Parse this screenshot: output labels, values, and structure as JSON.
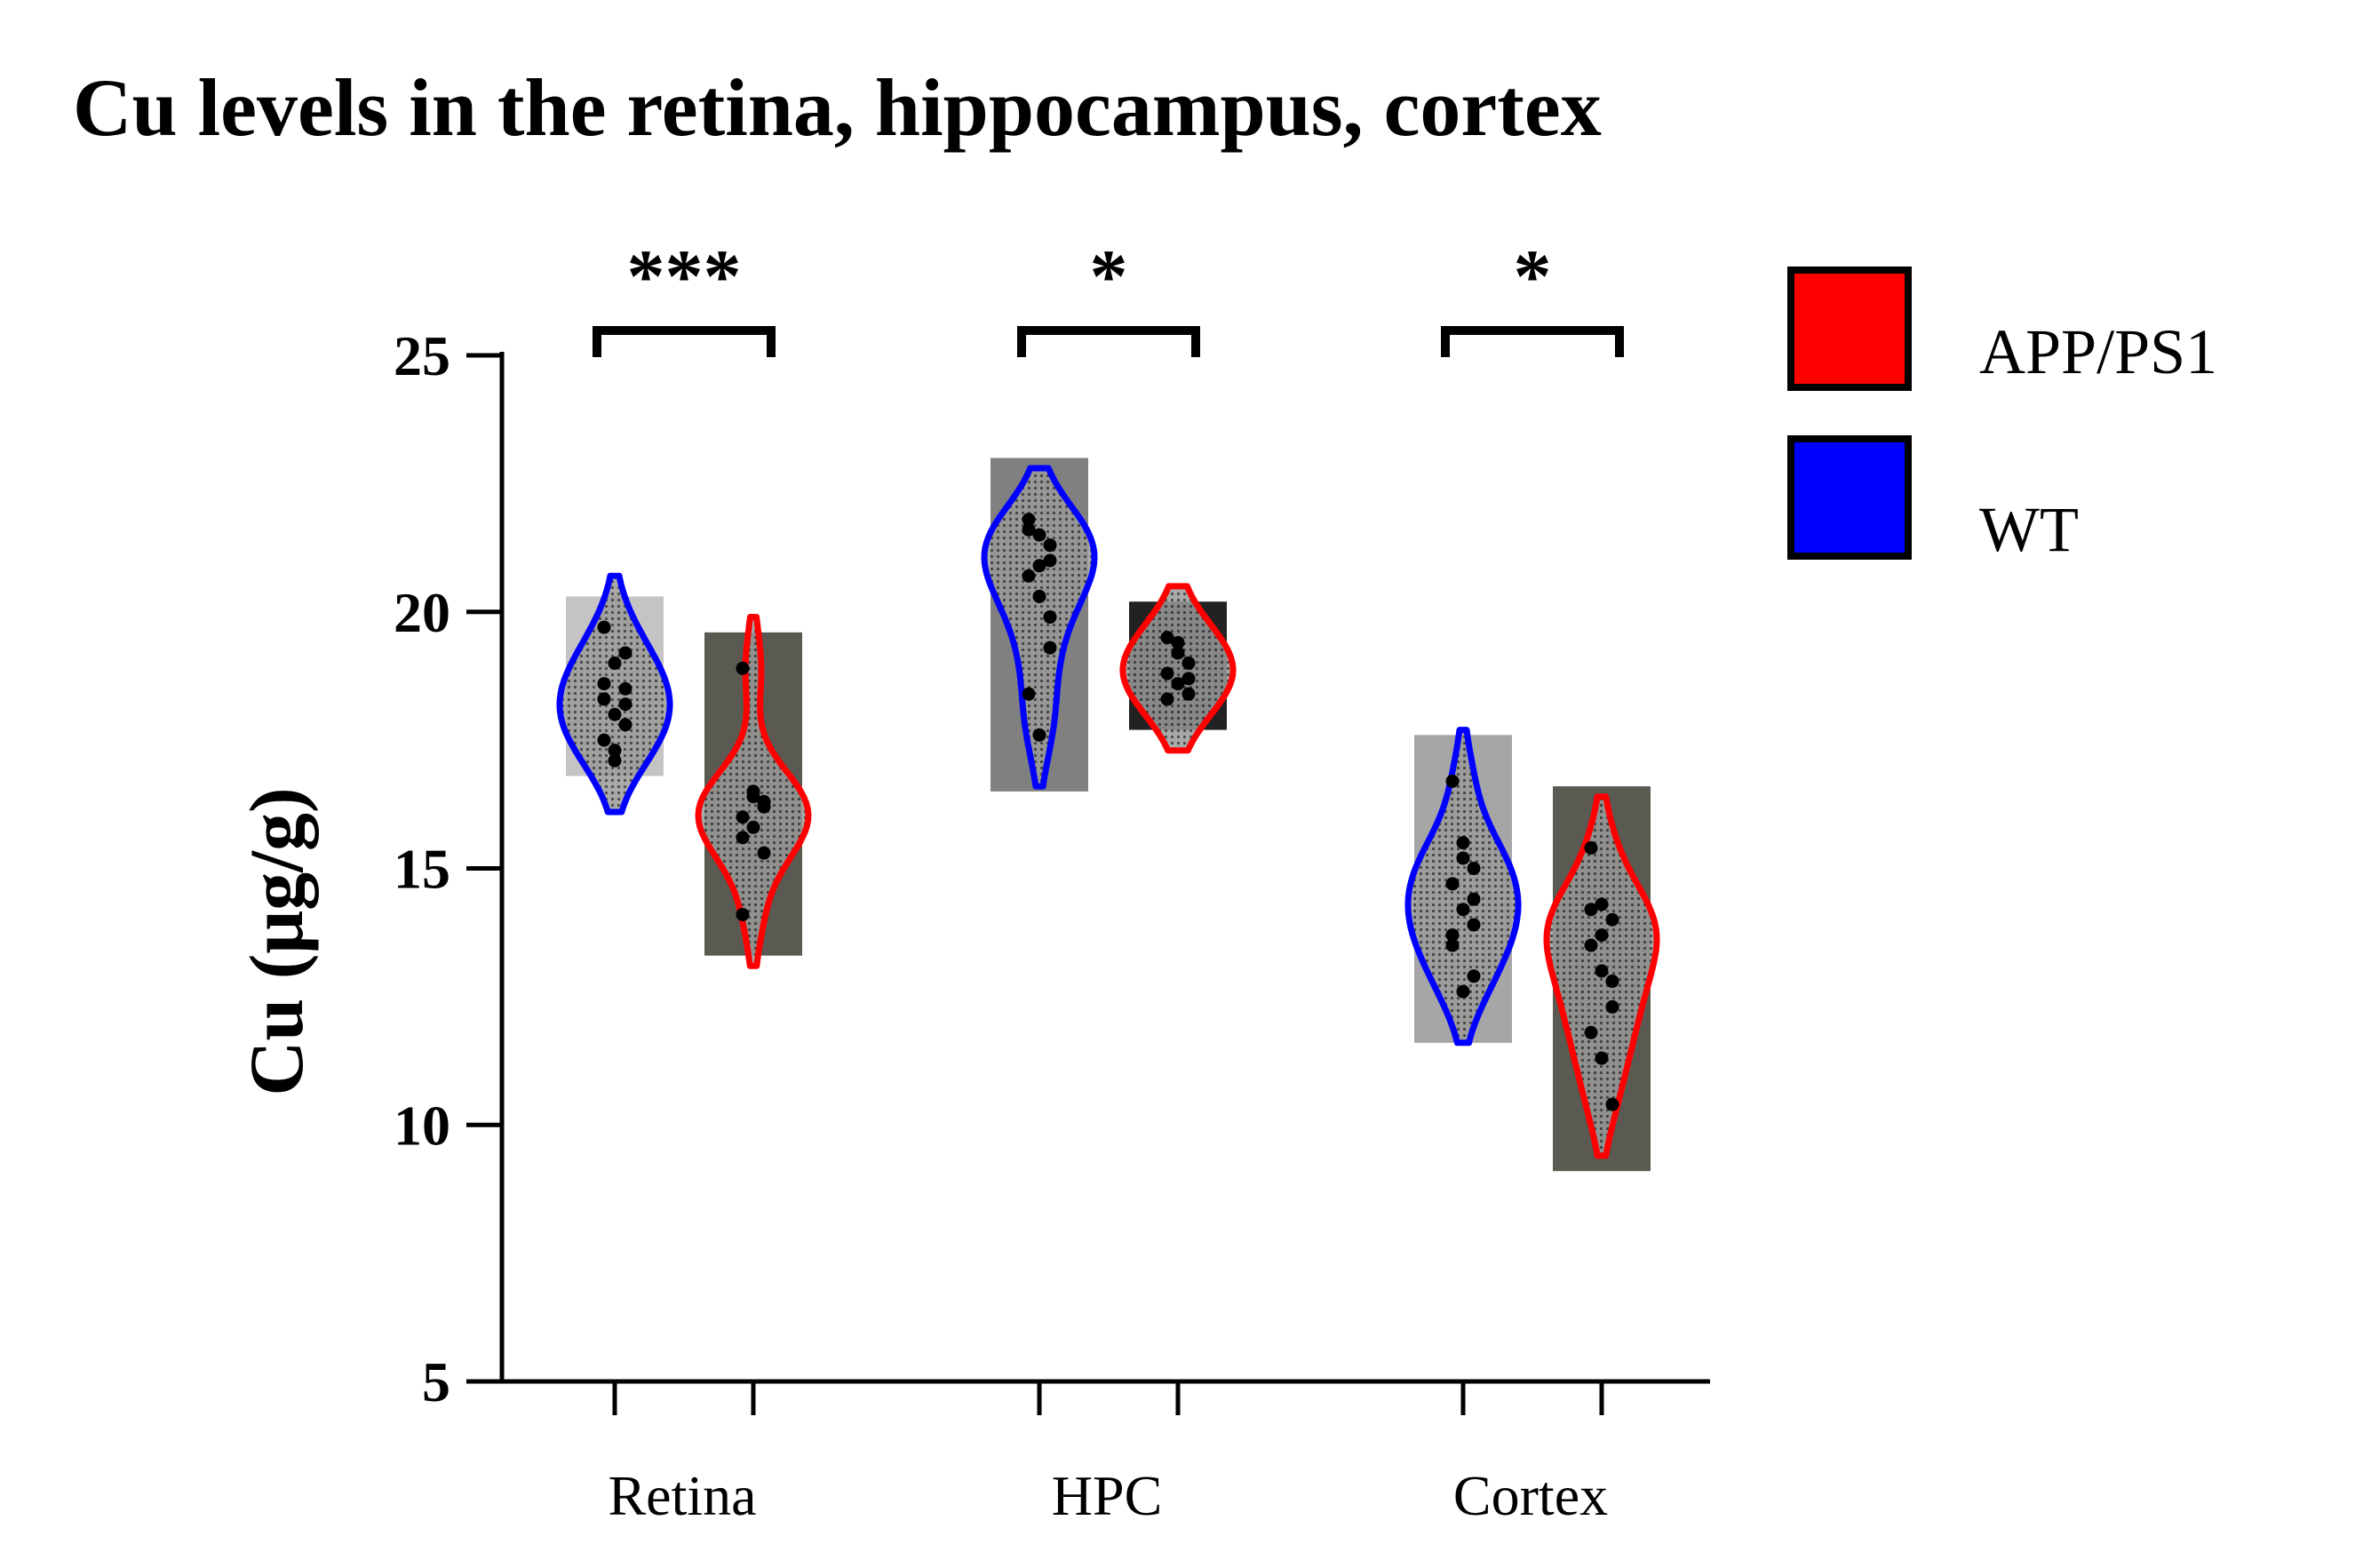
{
  "chart_data": {
    "type": "violin",
    "title": "Cu levels in the retina, hippocampus, cortex",
    "ylabel": "Cu (μg/g)",
    "xlabel": "",
    "ylim": [
      5,
      25
    ],
    "yticks": [
      5,
      10,
      15,
      20,
      25
    ],
    "categories": [
      "Retina",
      "HPC",
      "Cortex"
    ],
    "legend_position": "top-right",
    "series": [
      {
        "name": "WT",
        "color": "#0000ff",
        "box_ranges": [
          [
            16.8,
            20.3
          ],
          [
            16.5,
            23.0
          ],
          [
            11.6,
            17.6
          ]
        ],
        "box_colors": [
          "#c4c4c4",
          "#808080",
          "#a6a6a6"
        ],
        "points": [
          [
            19.7,
            19.0,
            18.5,
            18.3,
            18.0,
            17.8,
            17.5,
            17.1,
            19.2,
            18.6,
            17.3,
            18.2
          ],
          [
            21.8,
            21.5,
            21.0,
            20.7,
            20.3,
            19.3,
            18.4,
            17.6,
            21.3,
            21.6,
            20.9,
            19.9
          ],
          [
            16.7,
            15.5,
            15.0,
            14.7,
            14.2,
            13.9,
            13.5,
            12.6,
            14.4,
            13.7,
            15.2,
            12.9
          ]
        ]
      },
      {
        "name": "APP/PS1",
        "color": "#ff0000",
        "box_ranges": [
          [
            13.3,
            19.6
          ],
          [
            17.7,
            20.2
          ],
          [
            9.1,
            16.6
          ]
        ],
        "box_colors": [
          "#5a5a52",
          "#222222",
          "#5a5a52"
        ],
        "points": [
          [
            18.9,
            16.5,
            16.3,
            16.0,
            15.8,
            15.3,
            14.1,
            16.4,
            16.2,
            15.6
          ],
          [
            19.5,
            19.2,
            19.0,
            18.8,
            18.6,
            18.4,
            18.3,
            19.4,
            18.7
          ],
          [
            15.4,
            14.3,
            14.0,
            13.5,
            13.0,
            12.3,
            11.8,
            11.3,
            10.4,
            14.2,
            13.7,
            12.8
          ]
        ]
      }
    ],
    "significance": [
      "***",
      "*",
      "*"
    ]
  },
  "legend": [
    {
      "label": "APP/PS1",
      "color": "#ff0000"
    },
    {
      "label": "WT",
      "color": "#0000ff"
    }
  ]
}
